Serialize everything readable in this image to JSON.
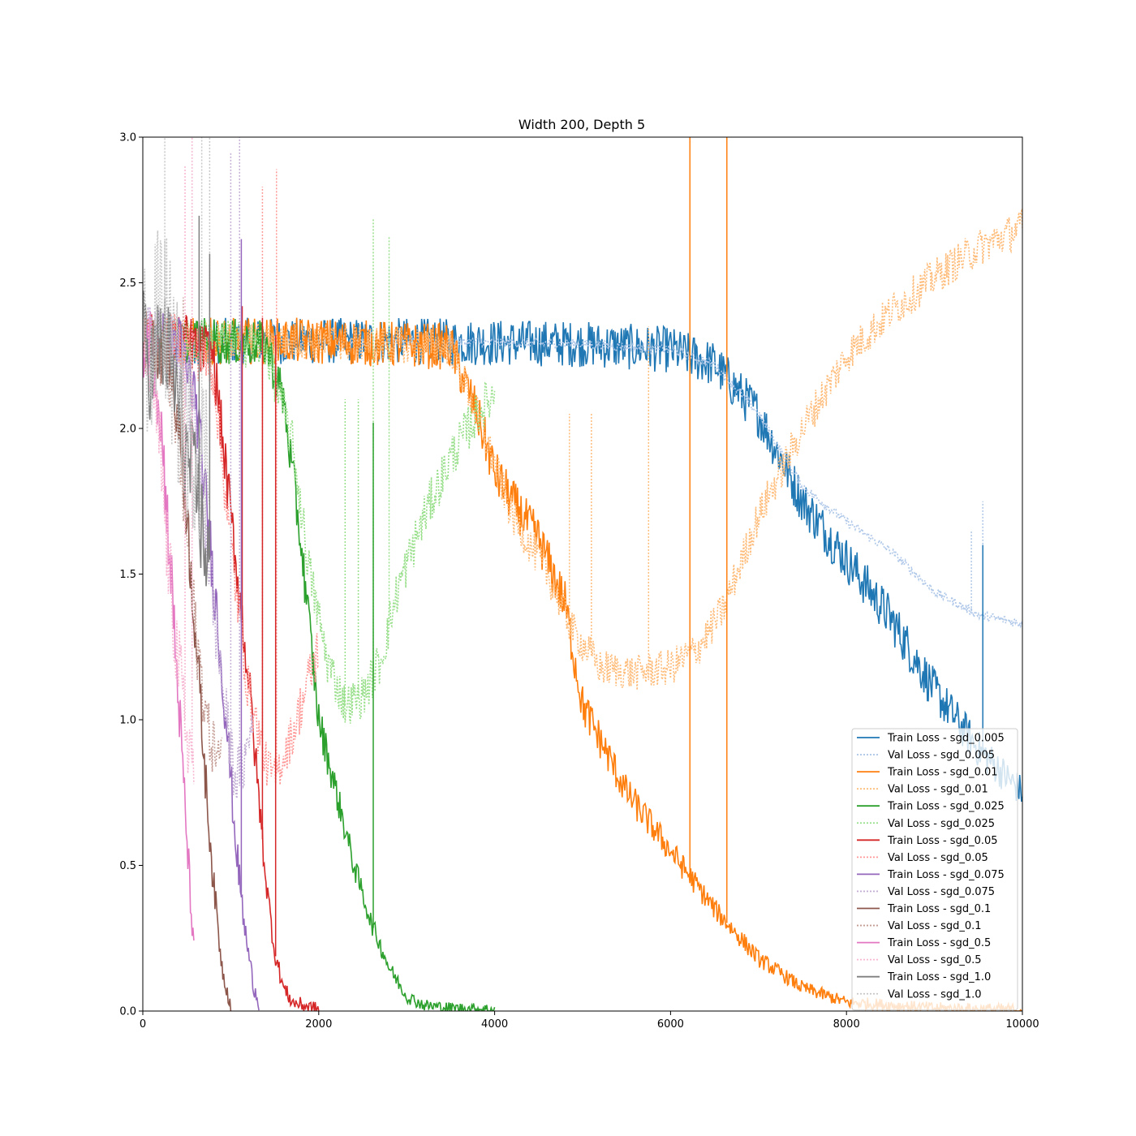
{
  "chart_data": {
    "type": "line",
    "title": "Width 200, Depth 5",
    "xlabel": "",
    "ylabel": "",
    "xlim": [
      0,
      10000
    ],
    "ylim": [
      0,
      3.0
    ],
    "x_ticks": [
      0,
      2000,
      4000,
      6000,
      8000,
      10000
    ],
    "x_tick_labels": [
      "0",
      "2000",
      "4000",
      "6000",
      "8000",
      "10000"
    ],
    "y_ticks": [
      0,
      0.5,
      1.0,
      1.5,
      2.0,
      2.5,
      3.0
    ],
    "y_tick_labels": [
      "0.0",
      "0.5",
      "1.0",
      "1.5",
      "2.0",
      "2.5",
      "3.0"
    ],
    "grid": false,
    "legend_position": "lower-right",
    "series": [
      {
        "name": "Train Loss - sgd_0.005",
        "style": "solid",
        "color": "#1f77b4",
        "noise": 0.05,
        "points": [
          [
            0,
            2.3
          ],
          [
            1000,
            2.3
          ],
          [
            3000,
            2.3
          ],
          [
            5000,
            2.29
          ],
          [
            6000,
            2.27
          ],
          [
            6500,
            2.22
          ],
          [
            7000,
            2.05
          ],
          [
            7500,
            1.75
          ],
          [
            8000,
            1.55
          ],
          [
            8500,
            1.35
          ],
          [
            9000,
            1.1
          ],
          [
            9500,
            0.9
          ],
          [
            10000,
            0.75
          ]
        ]
      },
      {
        "name": "Val Loss - sgd_0.005",
        "style": "dotted",
        "color": "#aec7e8",
        "noise": 0.01,
        "points": [
          [
            0,
            2.3
          ],
          [
            3000,
            2.3
          ],
          [
            5000,
            2.29
          ],
          [
            6000,
            2.27
          ],
          [
            6500,
            2.22
          ],
          [
            7000,
            2.05
          ],
          [
            7500,
            1.8
          ],
          [
            8000,
            1.68
          ],
          [
            8500,
            1.58
          ],
          [
            9000,
            1.44
          ],
          [
            9500,
            1.36
          ],
          [
            10000,
            1.33
          ]
        ]
      },
      {
        "name": "Train Loss - sgd_0.01",
        "style": "solid",
        "color": "#ff7f0e",
        "noise": 0.05,
        "points": [
          [
            0,
            2.3
          ],
          [
            2000,
            2.3
          ],
          [
            3500,
            2.28
          ],
          [
            3800,
            2.05
          ],
          [
            4000,
            1.85
          ],
          [
            4200,
            1.75
          ],
          [
            4500,
            1.62
          ],
          [
            4800,
            1.4
          ],
          [
            5000,
            1.05
          ],
          [
            5500,
            0.75
          ],
          [
            6000,
            0.55
          ],
          [
            6500,
            0.35
          ],
          [
            7000,
            0.18
          ],
          [
            7500,
            0.08
          ],
          [
            8000,
            0.03
          ],
          [
            9000,
            0.01
          ],
          [
            10000,
            0.005
          ]
        ]
      },
      {
        "name": "Val Loss - sgd_0.01",
        "style": "dotted",
        "color": "#ffbb78",
        "noise": 0.04,
        "points": [
          [
            0,
            2.3
          ],
          [
            2000,
            2.3
          ],
          [
            3500,
            2.28
          ],
          [
            3800,
            2.05
          ],
          [
            4200,
            1.7
          ],
          [
            4600,
            1.5
          ],
          [
            4900,
            1.3
          ],
          [
            5200,
            1.18
          ],
          [
            5600,
            1.16
          ],
          [
            6000,
            1.18
          ],
          [
            6300,
            1.24
          ],
          [
            6600,
            1.38
          ],
          [
            7000,
            1.7
          ],
          [
            7500,
            2.0
          ],
          [
            8000,
            2.25
          ],
          [
            8500,
            2.4
          ],
          [
            9000,
            2.52
          ],
          [
            9500,
            2.62
          ],
          [
            10000,
            2.69
          ]
        ]
      },
      {
        "name": "Train Loss - sgd_0.025",
        "style": "solid",
        "color": "#2ca02c",
        "noise": 0.05,
        "points": [
          [
            0,
            2.3
          ],
          [
            800,
            2.3
          ],
          [
            1400,
            2.29
          ],
          [
            1600,
            2.1
          ],
          [
            1800,
            1.6
          ],
          [
            1900,
            1.3
          ],
          [
            2000,
            1.0
          ],
          [
            2200,
            0.75
          ],
          [
            2400,
            0.5
          ],
          [
            2600,
            0.3
          ],
          [
            2800,
            0.15
          ],
          [
            3000,
            0.05
          ],
          [
            3200,
            0.02
          ],
          [
            3500,
            0.01
          ],
          [
            4000,
            0.005
          ]
        ]
      },
      {
        "name": "Val Loss - sgd_0.025",
        "style": "dotted",
        "color": "#98df8a",
        "noise": 0.05,
        "points": [
          [
            0,
            2.3
          ],
          [
            800,
            2.3
          ],
          [
            1400,
            2.28
          ],
          [
            1700,
            1.95
          ],
          [
            1900,
            1.5
          ],
          [
            2100,
            1.2
          ],
          [
            2300,
            1.05
          ],
          [
            2500,
            1.08
          ],
          [
            2700,
            1.2
          ],
          [
            2900,
            1.45
          ],
          [
            3200,
            1.7
          ],
          [
            3500,
            1.9
          ],
          [
            3800,
            2.05
          ],
          [
            4000,
            2.12
          ]
        ]
      },
      {
        "name": "Train Loss - sgd_0.05",
        "style": "solid",
        "color": "#d62728",
        "noise": 0.06,
        "points": [
          [
            0,
            2.3
          ],
          [
            500,
            2.3
          ],
          [
            800,
            2.25
          ],
          [
            1000,
            1.7
          ],
          [
            1200,
            1.15
          ],
          [
            1300,
            0.8
          ],
          [
            1400,
            0.45
          ],
          [
            1500,
            0.2
          ],
          [
            1600,
            0.08
          ],
          [
            1700,
            0.03
          ],
          [
            2000,
            0.005
          ]
        ]
      },
      {
        "name": "Val Loss - sgd_0.05",
        "style": "dotted",
        "color": "#ff9896",
        "noise": 0.06,
        "points": [
          [
            0,
            2.3
          ],
          [
            500,
            2.3
          ],
          [
            800,
            2.2
          ],
          [
            1000,
            1.6
          ],
          [
            1200,
            1.1
          ],
          [
            1400,
            0.85
          ],
          [
            1500,
            0.8
          ],
          [
            1700,
            0.95
          ],
          [
            2000,
            1.25
          ]
        ]
      },
      {
        "name": "Train Loss - sgd_0.075",
        "style": "solid",
        "color": "#9467bd",
        "noise": 0.07,
        "points": [
          [
            0,
            2.3
          ],
          [
            400,
            2.3
          ],
          [
            600,
            2.1
          ],
          [
            800,
            1.5
          ],
          [
            950,
            1.0
          ],
          [
            1050,
            0.6
          ],
          [
            1150,
            0.3
          ],
          [
            1250,
            0.1
          ],
          [
            1320,
            0.03
          ]
        ]
      },
      {
        "name": "Val Loss - sgd_0.075",
        "style": "dotted",
        "color": "#c5b0d5",
        "noise": 0.08,
        "points": [
          [
            0,
            2.3
          ],
          [
            400,
            2.25
          ],
          [
            600,
            2.0
          ],
          [
            800,
            1.4
          ],
          [
            950,
            1.0
          ],
          [
            1050,
            0.8
          ],
          [
            1150,
            0.85
          ],
          [
            1250,
            1.0
          ]
        ]
      },
      {
        "name": "Train Loss - sgd_0.1",
        "style": "solid",
        "color": "#8c564b",
        "noise": 0.07,
        "points": [
          [
            0,
            2.3
          ],
          [
            300,
            2.25
          ],
          [
            450,
            1.9
          ],
          [
            600,
            1.3
          ],
          [
            700,
            0.85
          ],
          [
            800,
            0.45
          ],
          [
            900,
            0.15
          ],
          [
            1000,
            0.02
          ]
        ]
      },
      {
        "name": "Val Loss - sgd_0.1",
        "style": "dotted",
        "color": "#c49c94",
        "noise": 0.08,
        "points": [
          [
            0,
            2.3
          ],
          [
            300,
            2.2
          ],
          [
            450,
            1.8
          ],
          [
            600,
            1.3
          ],
          [
            750,
            0.95
          ],
          [
            900,
            0.85
          ]
        ]
      },
      {
        "name": "Train Loss - sgd_0.5",
        "style": "solid",
        "color": "#e377c2",
        "noise": 0.08,
        "points": [
          [
            0,
            2.3
          ],
          [
            100,
            2.3
          ],
          [
            200,
            2.05
          ],
          [
            300,
            1.6
          ],
          [
            400,
            1.1
          ],
          [
            500,
            0.6
          ],
          [
            580,
            0.2
          ]
        ]
      },
      {
        "name": "Val Loss - sgd_0.5",
        "style": "dotted",
        "color": "#f7b6d2",
        "noise": 0.1,
        "points": [
          [
            0,
            2.3
          ],
          [
            100,
            2.2
          ],
          [
            200,
            1.9
          ],
          [
            300,
            1.5
          ],
          [
            400,
            1.2
          ],
          [
            500,
            0.95
          ],
          [
            580,
            0.85
          ]
        ]
      },
      {
        "name": "Train Loss - sgd_1.0",
        "style": "solid",
        "color": "#7f7f7f",
        "noise": 0.12,
        "points": [
          [
            0,
            2.3
          ],
          [
            100,
            2.2
          ],
          [
            200,
            2.3
          ],
          [
            300,
            2.25
          ],
          [
            400,
            2.1
          ],
          [
            500,
            1.9
          ],
          [
            600,
            1.8
          ],
          [
            700,
            1.6
          ],
          [
            750,
            1.55
          ]
        ]
      },
      {
        "name": "Val Loss - sgd_1.0",
        "style": "dotted",
        "color": "#c7c7c7",
        "noise": 0.2,
        "points": [
          [
            0,
            2.3
          ],
          [
            100,
            2.2
          ],
          [
            200,
            2.5
          ],
          [
            300,
            2.3
          ],
          [
            400,
            2.1
          ],
          [
            500,
            2.0
          ],
          [
            600,
            1.95
          ],
          [
            700,
            1.9
          ],
          [
            760,
            1.9
          ]
        ]
      }
    ],
    "spikes": [
      {
        "series": 1,
        "x": 9420,
        "y": 1.65
      },
      {
        "series": 1,
        "x": 9550,
        "y": 1.75
      },
      {
        "series": 0,
        "x": 9550,
        "y": 1.6
      },
      {
        "series": 2,
        "x": 6220,
        "y": 3.0
      },
      {
        "series": 2,
        "x": 6640,
        "y": 3.0
      },
      {
        "series": 3,
        "x": 5750,
        "y": 2.35
      },
      {
        "series": 3,
        "x": 4850,
        "y": 2.05
      },
      {
        "series": 3,
        "x": 5100,
        "y": 2.05
      },
      {
        "series": 5,
        "x": 2620,
        "y": 2.72
      },
      {
        "series": 5,
        "x": 2800,
        "y": 2.66
      },
      {
        "series": 5,
        "x": 2450,
        "y": 2.1
      },
      {
        "series": 5,
        "x": 2300,
        "y": 2.1
      },
      {
        "series": 4,
        "x": 2620,
        "y": 2.02
      },
      {
        "series": 7,
        "x": 1520,
        "y": 2.89
      },
      {
        "series": 7,
        "x": 1360,
        "y": 2.83
      },
      {
        "series": 6,
        "x": 1510,
        "y": 2.32
      },
      {
        "series": 6,
        "x": 1360,
        "y": 2.38
      },
      {
        "series": 6,
        "x": 1130,
        "y": 2.42
      },
      {
        "series": 9,
        "x": 1100,
        "y": 3.0
      },
      {
        "series": 9,
        "x": 1000,
        "y": 2.95
      },
      {
        "series": 8,
        "x": 1120,
        "y": 2.65
      },
      {
        "series": 11,
        "x": 460,
        "y": 2.45
      },
      {
        "series": 13,
        "x": 560,
        "y": 3.0
      },
      {
        "series": 13,
        "x": 480,
        "y": 2.9
      },
      {
        "series": 15,
        "x": 250,
        "y": 3.0
      },
      {
        "series": 15,
        "x": 760,
        "y": 3.0
      },
      {
        "series": 15,
        "x": 670,
        "y": 3.0
      },
      {
        "series": 14,
        "x": 640,
        "y": 2.73
      },
      {
        "series": 14,
        "x": 760,
        "y": 2.6
      }
    ]
  }
}
